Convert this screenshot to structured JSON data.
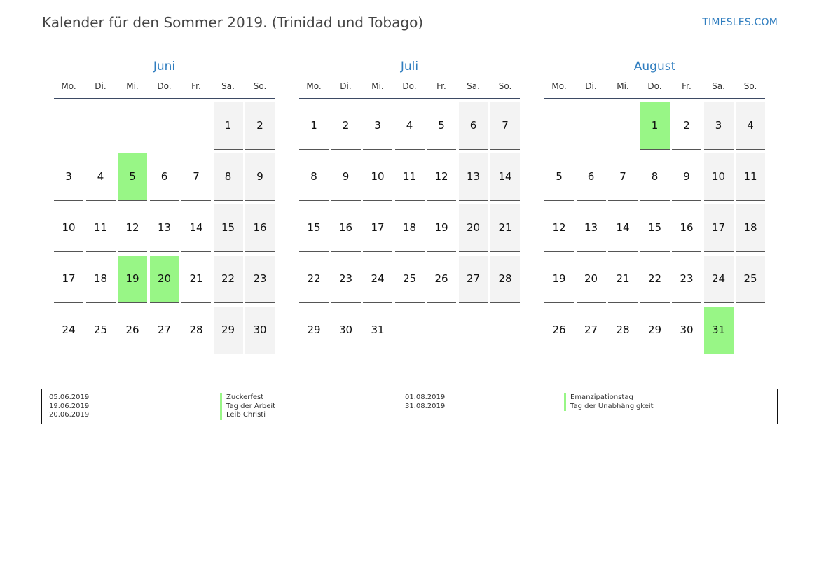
{
  "header": {
    "title": "Kalender für den Sommer 2019. (Trinidad und Tobago)",
    "site": "TIMESLES.COM"
  },
  "weekdays": [
    "Mo.",
    "Di.",
    "Mi.",
    "Do.",
    "Fr.",
    "Sa.",
    "So."
  ],
  "months": [
    {
      "name": "Juni",
      "start_weekday": 5,
      "days": 30,
      "holidays": [
        5,
        19,
        20
      ]
    },
    {
      "name": "Juli",
      "start_weekday": 0,
      "days": 31,
      "holidays": []
    },
    {
      "name": "August",
      "start_weekday": 3,
      "days": 31,
      "holidays": [
        1,
        31
      ]
    }
  ],
  "legend": {
    "left": [
      {
        "date": "05.06.2019",
        "name": "Zuckerfest"
      },
      {
        "date": "19.06.2019",
        "name": "Tag der Arbeit"
      },
      {
        "date": "20.06.2019",
        "name": "Leib Christi"
      }
    ],
    "right": [
      {
        "date": "01.08.2019",
        "name": "Emanzipationstag"
      },
      {
        "date": "31.08.2019",
        "name": "Tag der Unabhängigkeit"
      }
    ]
  },
  "colors": {
    "holiday": "#98f686",
    "weekend": "#f3f3f3",
    "accent": "#2f7dbf"
  }
}
